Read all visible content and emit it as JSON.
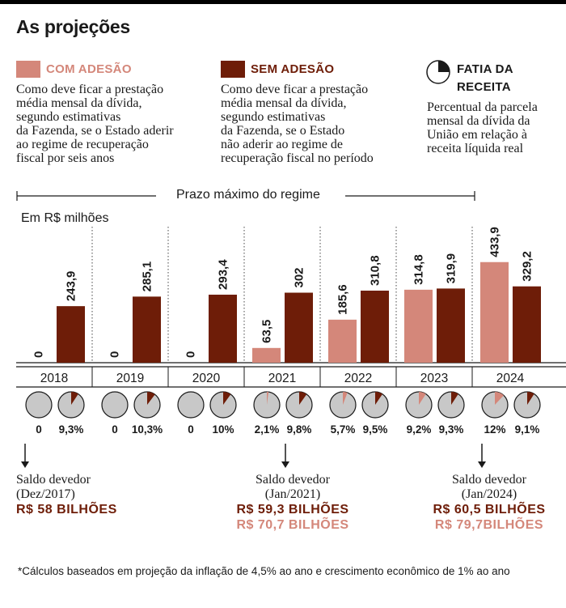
{
  "title": "As projeções",
  "colors": {
    "com": "#d4877a",
    "sem": "#6e1d08",
    "pie_bg": "#c8c8c8",
    "com_text": "#d4877a",
    "sem_text": "#6e1d08"
  },
  "legend": {
    "com": {
      "label": "COM ADESÃO",
      "lines": [
        "Como deve ficar a prestação",
        "média mensal da dívida,",
        "segundo estimativas",
        "da Fazenda, se o Estado aderir",
        "ao regime de recuperação",
        "fiscal por seis anos"
      ]
    },
    "sem": {
      "label": "SEM ADESÃO",
      "lines": [
        "Como deve ficar a prestação",
        "média mensal da dívida,",
        "segundo estimativas",
        "da Fazenda, se o Estado",
        "não aderir ao regime de",
        "recuperação fiscal no período"
      ]
    },
    "fatia": {
      "label_line1": "FATIA DA",
      "label_line2": "RECEITA",
      "icon": "pie-slice-icon",
      "lines": [
        "Percentual da parcela",
        "mensal da dívida da",
        "União em relação à",
        "receita líquida real"
      ]
    }
  },
  "regime_label": "Prazo máximo do regime",
  "unit_label": "Em R$ milhões",
  "chart_data": {
    "type": "bar",
    "categories": [
      "2018",
      "2019",
      "2020",
      "2021",
      "2022",
      "2023",
      "2024"
    ],
    "series": [
      {
        "name": "COM ADESÃO",
        "values": [
          0,
          0,
          0,
          63.5,
          185.6,
          314.8,
          433.9
        ],
        "labels": [
          "0",
          "0",
          "0",
          "63,5",
          "185,6",
          "314,8",
          "433,9"
        ]
      },
      {
        "name": "SEM ADESÃO",
        "values": [
          243.9,
          285.1,
          293.4,
          302,
          310.8,
          319.9,
          329.2
        ],
        "labels": [
          "243,9",
          "285,1",
          "293,4",
          "302",
          "310,8",
          "319,9",
          "329,2"
        ]
      }
    ],
    "pies": {
      "com": {
        "values": [
          0,
          0,
          0,
          2.1,
          5.7,
          9.2,
          12
        ],
        "labels": [
          "0",
          "0",
          "0",
          "2,1%",
          "5,7%",
          "9,2%",
          "12%"
        ]
      },
      "sem": {
        "values": [
          9.3,
          10.3,
          10,
          9.8,
          9.5,
          9.3,
          9.1
        ],
        "labels": [
          "9,3%",
          "10,3%",
          "10%",
          "9,8%",
          "9,5%",
          "9,3%",
          "9,1%"
        ]
      }
    },
    "ylim": [
      0,
      440
    ],
    "xlabel": "",
    "ylabel": "Em R$ milhões",
    "grid": false
  },
  "saldos": [
    {
      "line1": "Saldo devedor",
      "line2": "(Dez/2017)",
      "value1": "R$ 58 BILHÕES",
      "value2": ""
    },
    {
      "line1": "Saldo devedor",
      "line2": "(Jan/2021)",
      "value1": "R$ 59,3 BILHÕES",
      "value2": "R$ 70,7 BILHÕES"
    },
    {
      "line1": "Saldo devedor",
      "line2": "(Jan/2024)",
      "value1": "R$ 60,5 BILHÕES",
      "value2": "R$ 79,7BILHÕES"
    }
  ],
  "footnote": "*Cálculos baseados em projeção da inflação de 4,5% ao ano e crescimento econômico de 1% ao ano"
}
